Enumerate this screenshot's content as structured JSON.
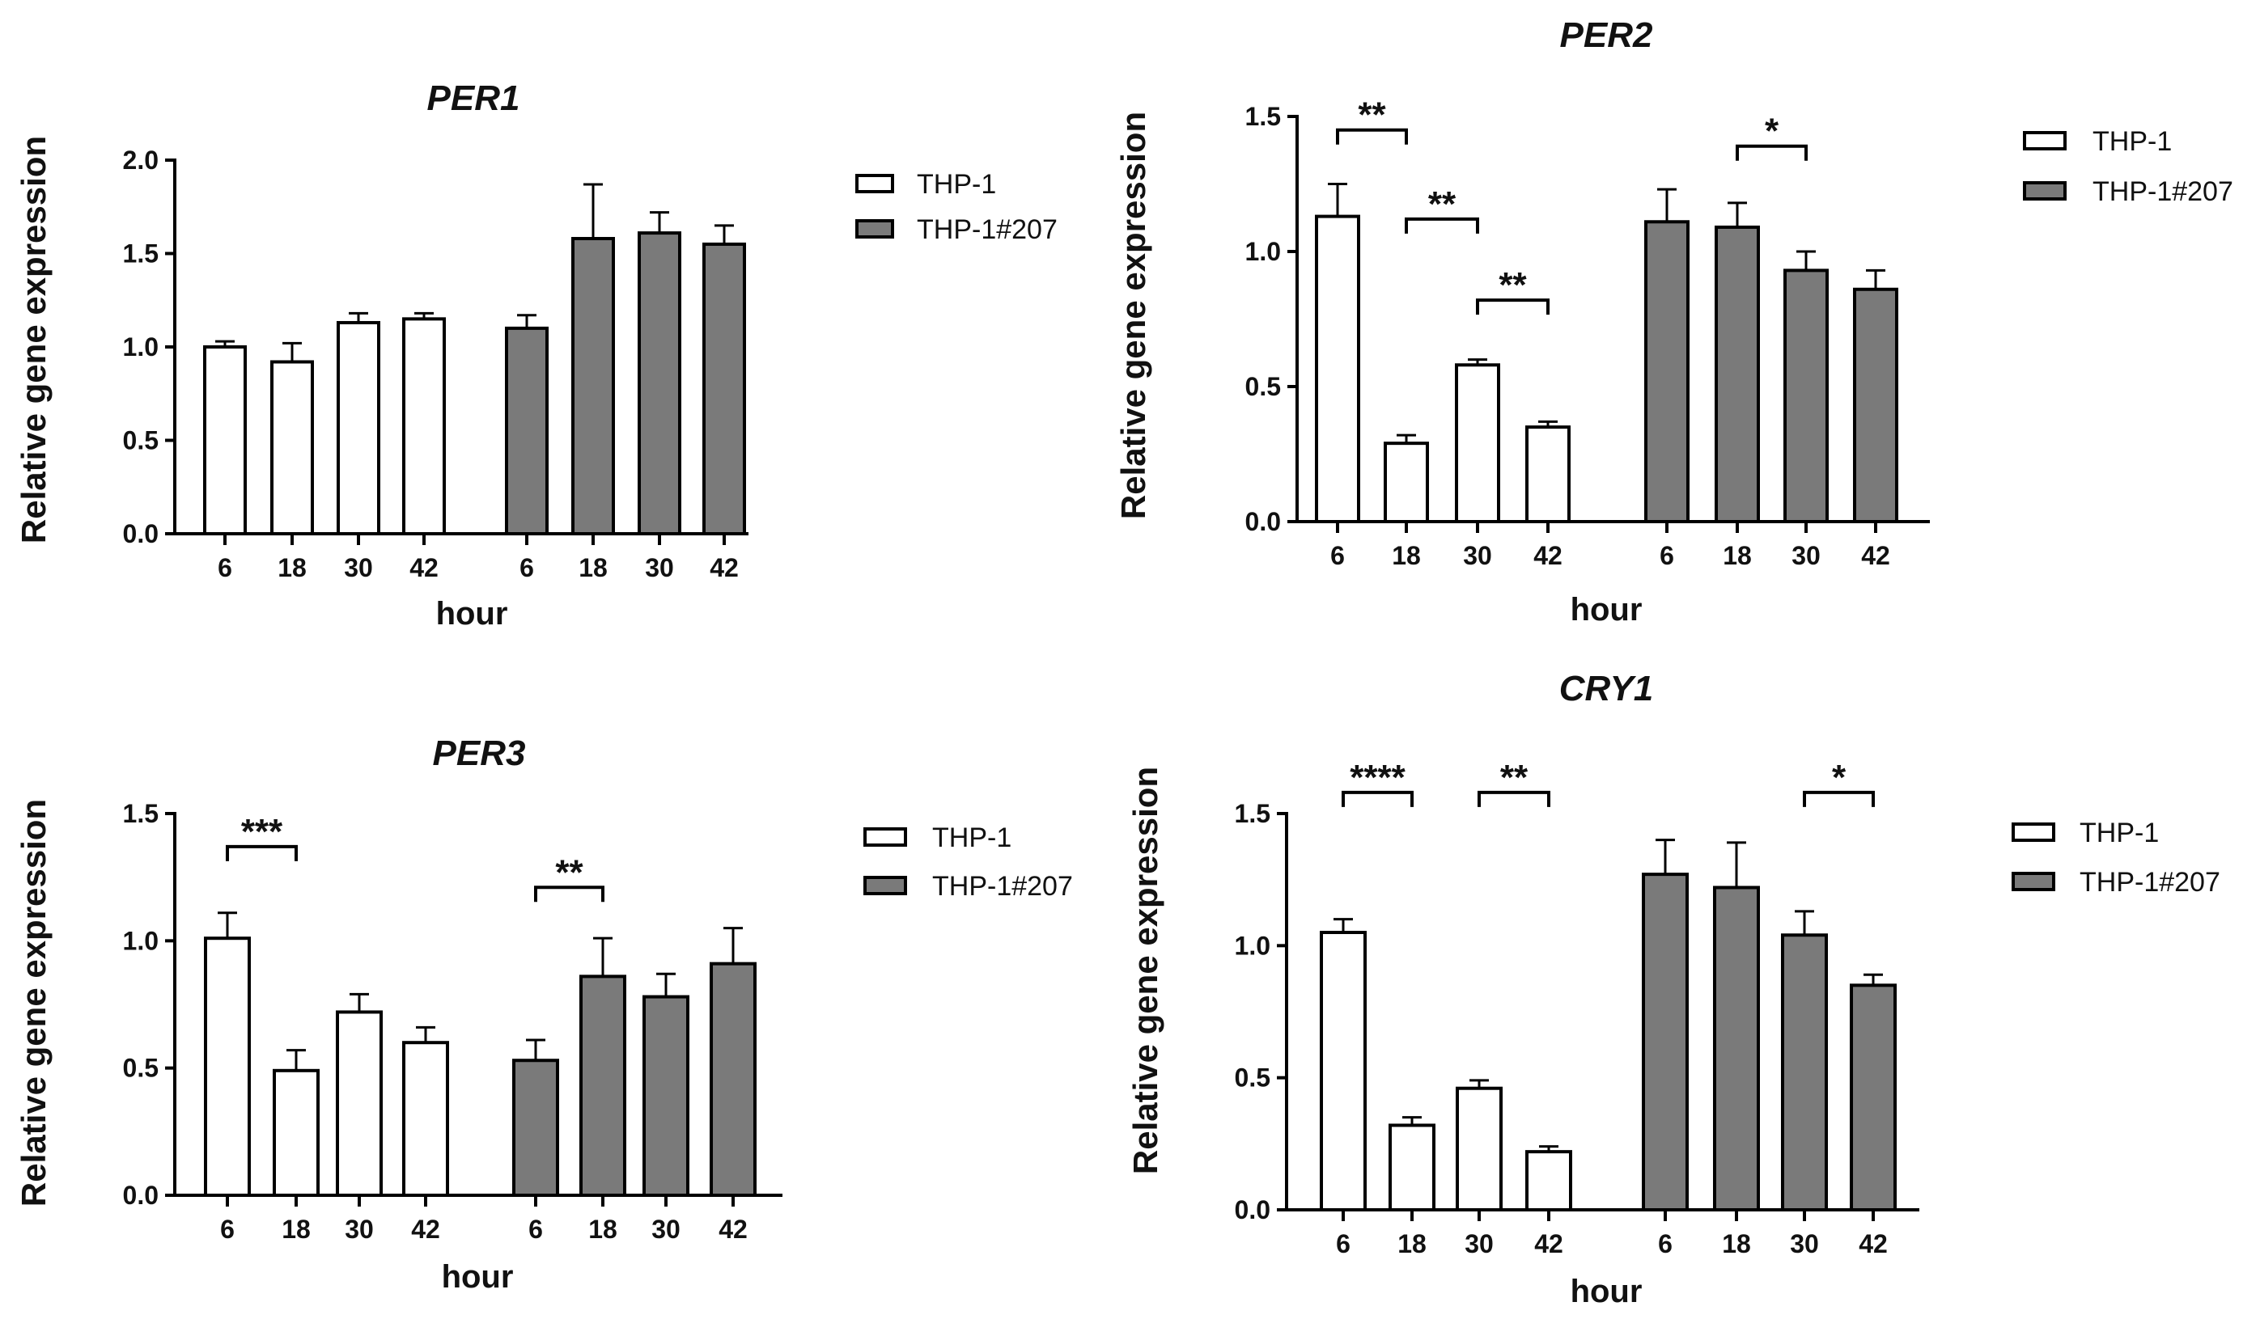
{
  "chart_data": [
    {
      "type": "bar",
      "title": "PER1",
      "xlabel": "hour",
      "ylabel": "Relative gene expression",
      "ylim": [
        0,
        2.0
      ],
      "yticks": [
        "0.0",
        "0.5",
        "1.0",
        "1.5",
        "2.0"
      ],
      "categories": [
        "6",
        "18",
        "30",
        "42"
      ],
      "legend_position": "right",
      "series": [
        {
          "name": "THP-1",
          "color": "#ffffff",
          "values": [
            1.0,
            0.92,
            1.13,
            1.15
          ],
          "errors": [
            0.03,
            0.1,
            0.05,
            0.03
          ]
        },
        {
          "name": "THP-1#207",
          "color": "#7a7a7a",
          "values": [
            1.1,
            1.58,
            1.61,
            1.55
          ],
          "errors": [
            0.07,
            0.29,
            0.11,
            0.1
          ]
        }
      ],
      "significance": []
    },
    {
      "type": "bar",
      "title": "PER2",
      "xlabel": "hour",
      "ylabel": "Relative gene expression",
      "ylim": [
        0,
        1.5
      ],
      "yticks": [
        "0.0",
        "0.5",
        "1.0",
        "1.5"
      ],
      "categories": [
        "6",
        "18",
        "30",
        "42"
      ],
      "legend_position": "right",
      "series": [
        {
          "name": "THP-1",
          "color": "#ffffff",
          "values": [
            1.13,
            0.29,
            0.58,
            0.35
          ],
          "errors": [
            0.12,
            0.03,
            0.02,
            0.02
          ]
        },
        {
          "name": "THP-1#207",
          "color": "#7a7a7a",
          "values": [
            1.11,
            1.09,
            0.93,
            0.86
          ],
          "errors": [
            0.12,
            0.09,
            0.07,
            0.07
          ]
        }
      ],
      "significance": [
        {
          "series": 0,
          "from": 0,
          "to": 1,
          "label": "**",
          "level": 1.45
        },
        {
          "series": 0,
          "from": 1,
          "to": 2,
          "label": "**",
          "level": 1.12
        },
        {
          "series": 0,
          "from": 2,
          "to": 3,
          "label": "**",
          "level": 0.82
        },
        {
          "series": 1,
          "from": 1,
          "to": 2,
          "label": "*",
          "level": 1.39
        }
      ]
    },
    {
      "type": "bar",
      "title": "PER3",
      "xlabel": "hour",
      "ylabel": "Relative gene expression",
      "ylim": [
        0,
        1.5
      ],
      "yticks": [
        "0.0",
        "0.5",
        "1.0",
        "1.5"
      ],
      "categories": [
        "6",
        "18",
        "30",
        "42"
      ],
      "legend_position": "right",
      "series": [
        {
          "name": "THP-1",
          "color": "#ffffff",
          "values": [
            1.01,
            0.49,
            0.72,
            0.6
          ],
          "errors": [
            0.1,
            0.08,
            0.07,
            0.06
          ]
        },
        {
          "name": "THP-1#207",
          "color": "#7a7a7a",
          "values": [
            0.53,
            0.86,
            0.78,
            0.91
          ],
          "errors": [
            0.08,
            0.15,
            0.09,
            0.14
          ]
        }
      ],
      "significance": [
        {
          "series": 0,
          "from": 0,
          "to": 1,
          "label": "***",
          "level": 1.37
        },
        {
          "series": 1,
          "from": 0,
          "to": 1,
          "label": "**",
          "level": 1.21
        }
      ]
    },
    {
      "type": "bar",
      "title": "CRY1",
      "xlabel": "hour",
      "ylabel": "Relative gene expression",
      "ylim": [
        0,
        1.5
      ],
      "yticks": [
        "0.0",
        "0.5",
        "1.0",
        "1.5"
      ],
      "categories": [
        "6",
        "18",
        "30",
        "42"
      ],
      "legend_position": "right",
      "series": [
        {
          "name": "THP-1",
          "color": "#ffffff",
          "values": [
            1.05,
            0.32,
            0.46,
            0.22
          ],
          "errors": [
            0.05,
            0.03,
            0.03,
            0.02
          ]
        },
        {
          "name": "THP-1#207",
          "color": "#7a7a7a",
          "values": [
            1.27,
            1.22,
            1.04,
            0.85
          ],
          "errors": [
            0.13,
            0.17,
            0.09,
            0.04
          ]
        }
      ],
      "significance": [
        {
          "series": 0,
          "from": 0,
          "to": 1,
          "label": "****",
          "level": 1.58
        },
        {
          "series": 0,
          "from": 2,
          "to": 3,
          "label": "**",
          "level": 1.58
        },
        {
          "series": 1,
          "from": 2,
          "to": 3,
          "label": "*",
          "level": 1.58
        }
      ]
    }
  ]
}
